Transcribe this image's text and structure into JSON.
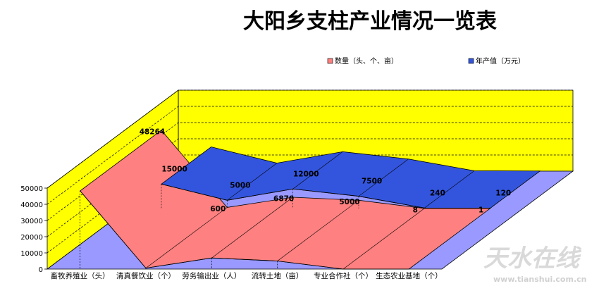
{
  "chart_data": {
    "type": "area",
    "title": "大阳乡支柱产业情况一览表",
    "categories": [
      "畜牧养殖业（头）",
      "清真餐饮业（个）",
      "劳务输出业（人）",
      "流转土地（亩）",
      "专业合作社（个）",
      "生态农业基地（个）"
    ],
    "series": [
      {
        "name": "数量（头、个、亩）",
        "values": [
          48264,
          600,
          6870,
          5000,
          8,
          1
        ],
        "color": "#ff8080"
      },
      {
        "name": "年产值（万元）",
        "values": [
          15000,
          5000,
          12000,
          7500,
          240,
          120
        ],
        "color": "#3355dd"
      }
    ],
    "y_ticks": [
      "0",
      "10000",
      "20000",
      "30000",
      "40000",
      "50000"
    ],
    "ylim": [
      0,
      50000
    ],
    "legend_position": "top",
    "grid": true,
    "three_d": true,
    "wall_color": "#ffff00",
    "floor_color": "#9999ff"
  },
  "watermark": {
    "text": "天水在线",
    "url": "www.tianshui.com.cn"
  }
}
